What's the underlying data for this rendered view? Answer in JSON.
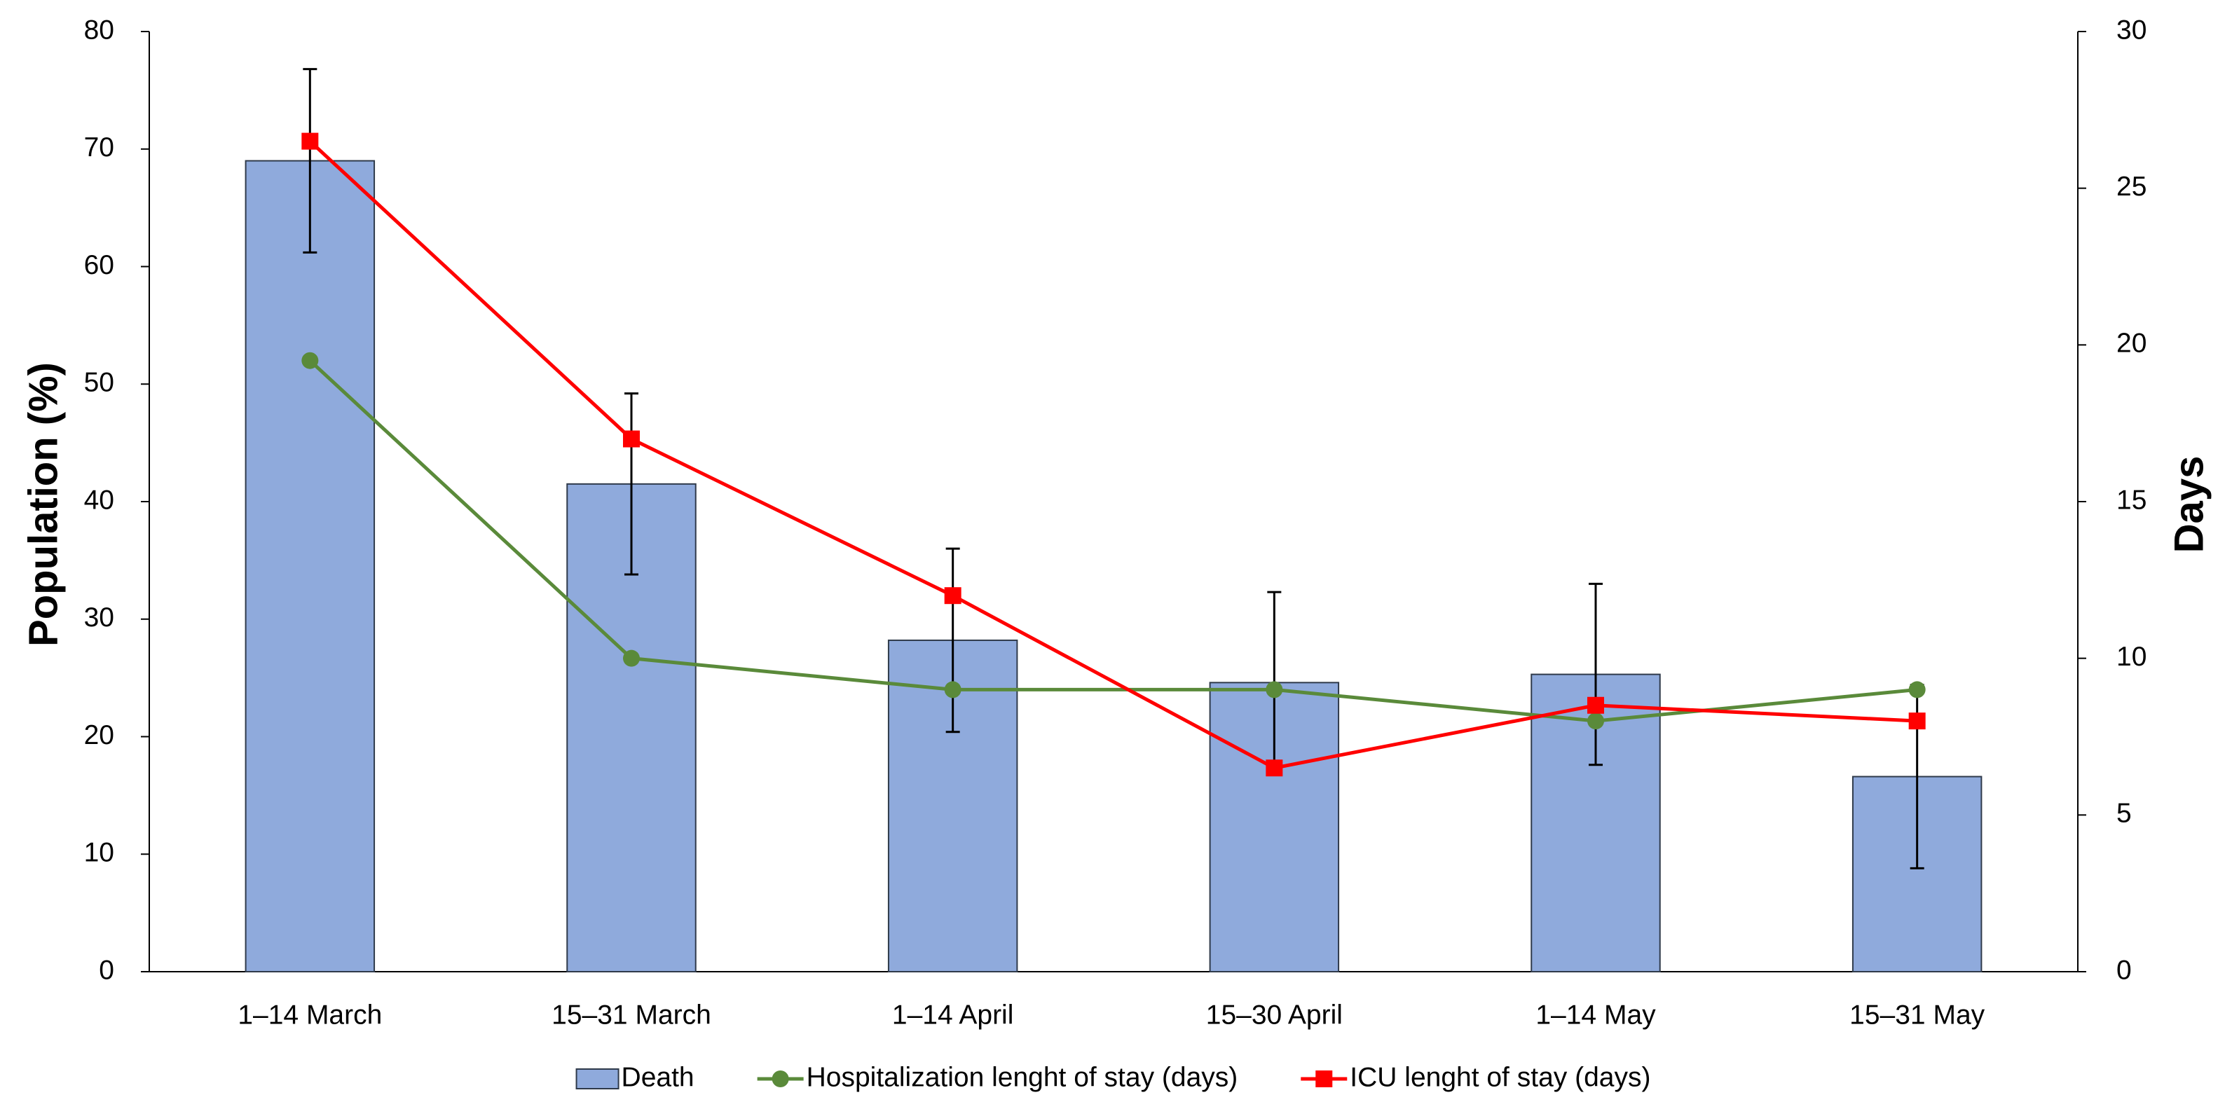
{
  "chart_data": {
    "type": "bar-line",
    "categories": [
      "1–14 March",
      "15–31 March",
      "1–14 April",
      "15–30 April",
      "1–14 May",
      "15–31 May"
    ],
    "y_label": "Population (%)",
    "y2_label": "Days",
    "ylim": [
      0,
      80
    ],
    "yticks": [
      0,
      10,
      20,
      30,
      40,
      50,
      60,
      70,
      80
    ],
    "y2lim": [
      0,
      30
    ],
    "y2ticks": [
      0,
      5,
      10,
      15,
      20,
      25,
      30
    ],
    "series": [
      {
        "name": "Death",
        "type": "bar",
        "color": "#8faadc",
        "values": [
          69,
          41.5,
          28.2,
          24.6,
          25.3,
          16.6
        ],
        "errors": [
          7.8,
          7.7,
          7.8,
          7.7,
          7.7,
          7.8
        ]
      },
      {
        "name": "Hospitalization lenght of stay (days)",
        "type": "line",
        "axis": "y2",
        "marker": "circle",
        "color": "#5a8a3a",
        "values": [
          19.5,
          10,
          9,
          9,
          8,
          9
        ]
      },
      {
        "name": "ICU lenght of stay (days)",
        "type": "line",
        "axis": "y2",
        "marker": "square",
        "color": "#ff0000",
        "values": [
          26.5,
          17,
          12,
          6.5,
          8.5,
          8
        ]
      }
    ],
    "legend": "bottom"
  }
}
